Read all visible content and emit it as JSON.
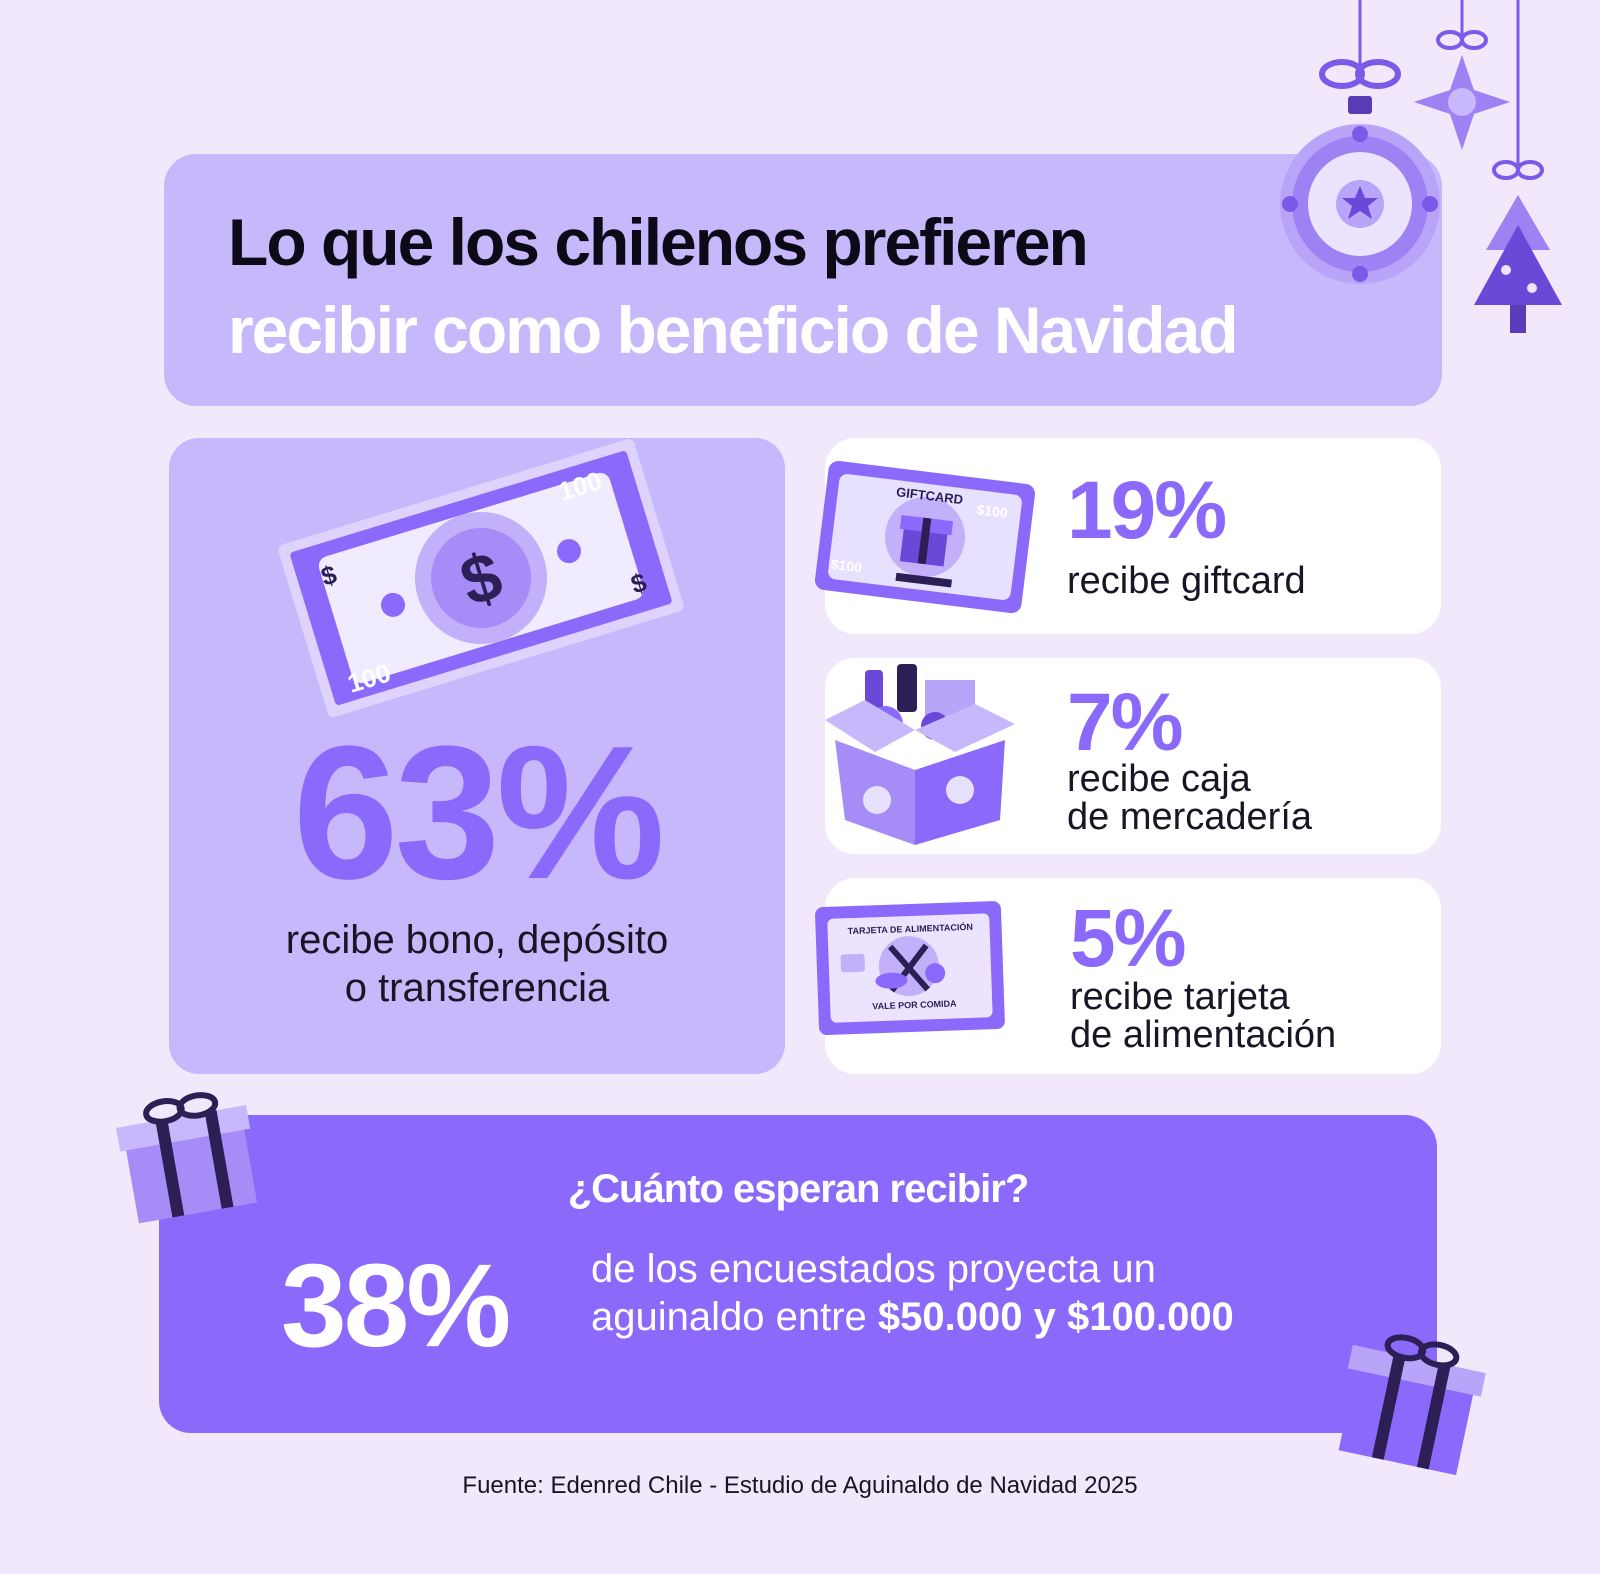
{
  "title": {
    "line1": "Lo que los chilenos prefieren",
    "line2": "recibir como beneficio de Navidad"
  },
  "main_stat": {
    "percent": "63%",
    "description": "recibe bono, depósito\no transferencia",
    "bill_label_top": "100",
    "bill_label_bottom": "100"
  },
  "stats": [
    {
      "percent": "19%",
      "description": "recibe giftcard",
      "card_label": "GIFTCARD",
      "card_value_top": "$100",
      "card_value_bottom": "$100"
    },
    {
      "percent": "7%",
      "description": "recibe caja\nde mercadería"
    },
    {
      "percent": "5%",
      "description": "recibe tarjeta\nde alimentación",
      "card_title": "TARJETA DE ALIMENTACIÓN",
      "card_subtitle": "VALE POR COMIDA"
    }
  ],
  "expectation": {
    "question": "¿Cuánto esperan recibir?",
    "percent": "38%",
    "text_line1": "de los encuestados proyecta un",
    "text_line2_prefix": "aguinaldo entre ",
    "text_line2_bold": "$50.000 y $100.000"
  },
  "source": "Fuente: Edenred Chile - Estudio de Aguinaldo de Navidad 2025",
  "colors": {
    "background": "#f1e8fb",
    "lavender": "#c7b8fb",
    "accent": "#8a69fb",
    "text_dark": "#0d0a17"
  }
}
